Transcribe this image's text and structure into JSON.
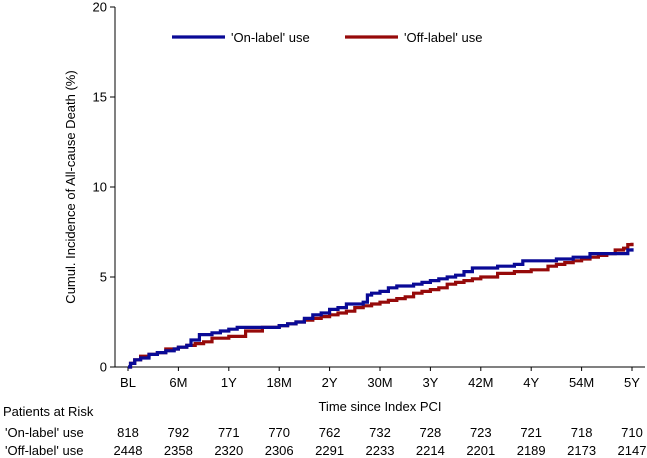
{
  "chart_data": {
    "type": "line",
    "title": "",
    "xlabel": "Time since Index PCI",
    "ylabel": "Cumul. Incidence of All-cause Death (%)",
    "ylim": [
      0,
      20
    ],
    "yticks": [
      "0",
      "5",
      "10",
      "15",
      "20"
    ],
    "xlim": [
      0,
      60
    ],
    "xticks": [
      {
        "label": "BL",
        "month": 0
      },
      {
        "label": "6M",
        "month": 6
      },
      {
        "label": "1Y",
        "month": 12
      },
      {
        "label": "18M",
        "month": 18
      },
      {
        "label": "2Y",
        "month": 24
      },
      {
        "label": "30M",
        "month": 30
      },
      {
        "label": "3Y",
        "month": 36
      },
      {
        "label": "42M",
        "month": 42
      },
      {
        "label": "4Y",
        "month": 48
      },
      {
        "label": "54M",
        "month": 54
      },
      {
        "label": "5Y",
        "month": 60
      }
    ],
    "legend_position": "top",
    "series": [
      {
        "name": "'On-label' use",
        "color": "#0a0a96",
        "points": [
          [
            0,
            0
          ],
          [
            0.3,
            0.2
          ],
          [
            0.8,
            0.4
          ],
          [
            1.5,
            0.5
          ],
          [
            2.5,
            0.7
          ],
          [
            3.5,
            0.8
          ],
          [
            4.5,
            0.9
          ],
          [
            5.5,
            1.0
          ],
          [
            6,
            1.1
          ],
          [
            7,
            1.2
          ],
          [
            7.5,
            1.5
          ],
          [
            8.5,
            1.8
          ],
          [
            10,
            1.9
          ],
          [
            11,
            2.0
          ],
          [
            12,
            2.1
          ],
          [
            13,
            2.2
          ],
          [
            16,
            2.2
          ],
          [
            18,
            2.3
          ],
          [
            19,
            2.4
          ],
          [
            20,
            2.5
          ],
          [
            21,
            2.7
          ],
          [
            22,
            2.9
          ],
          [
            23,
            3.0
          ],
          [
            24,
            3.2
          ],
          [
            25,
            3.3
          ],
          [
            26,
            3.5
          ],
          [
            28,
            3.6
          ],
          [
            28.5,
            4.0
          ],
          [
            29,
            4.1
          ],
          [
            30,
            4.2
          ],
          [
            31,
            4.4
          ],
          [
            32,
            4.5
          ],
          [
            34,
            4.6
          ],
          [
            35,
            4.7
          ],
          [
            36,
            4.8
          ],
          [
            37,
            4.9
          ],
          [
            38,
            5.0
          ],
          [
            39,
            5.1
          ],
          [
            40,
            5.3
          ],
          [
            41,
            5.5
          ],
          [
            43,
            5.5
          ],
          [
            44,
            5.6
          ],
          [
            46,
            5.7
          ],
          [
            47,
            5.9
          ],
          [
            50,
            5.9
          ],
          [
            51,
            6.0
          ],
          [
            53,
            6.1
          ],
          [
            55,
            6.3
          ],
          [
            59,
            6.3
          ],
          [
            59.5,
            6.5
          ],
          [
            60,
            6.6
          ]
        ]
      },
      {
        "name": "'Off-label' use",
        "color": "#960a0a",
        "points": [
          [
            0,
            0
          ],
          [
            0.3,
            0.2
          ],
          [
            0.8,
            0.4
          ],
          [
            1.5,
            0.6
          ],
          [
            2.5,
            0.7
          ],
          [
            3.5,
            0.8
          ],
          [
            4.5,
            1.0
          ],
          [
            6,
            1.1
          ],
          [
            7,
            1.2
          ],
          [
            8,
            1.3
          ],
          [
            9,
            1.4
          ],
          [
            10,
            1.6
          ],
          [
            12,
            1.7
          ],
          [
            14,
            2.0
          ],
          [
            16,
            2.2
          ],
          [
            18,
            2.3
          ],
          [
            19,
            2.4
          ],
          [
            20,
            2.5
          ],
          [
            21,
            2.6
          ],
          [
            22,
            2.7
          ],
          [
            23,
            2.8
          ],
          [
            24,
            2.9
          ],
          [
            25,
            3.0
          ],
          [
            26,
            3.1
          ],
          [
            27,
            3.3
          ],
          [
            28,
            3.4
          ],
          [
            29,
            3.5
          ],
          [
            30,
            3.6
          ],
          [
            31,
            3.7
          ],
          [
            32,
            3.8
          ],
          [
            33,
            3.9
          ],
          [
            34,
            4.1
          ],
          [
            35,
            4.2
          ],
          [
            36,
            4.3
          ],
          [
            37,
            4.4
          ],
          [
            38,
            4.6
          ],
          [
            39,
            4.7
          ],
          [
            40,
            4.8
          ],
          [
            41,
            4.9
          ],
          [
            42,
            5.0
          ],
          [
            44,
            5.2
          ],
          [
            46,
            5.3
          ],
          [
            48,
            5.4
          ],
          [
            50,
            5.6
          ],
          [
            51,
            5.7
          ],
          [
            52,
            5.8
          ],
          [
            53,
            5.9
          ],
          [
            54,
            6.0
          ],
          [
            55,
            6.1
          ],
          [
            56,
            6.2
          ],
          [
            57,
            6.3
          ],
          [
            58,
            6.5
          ],
          [
            59,
            6.6
          ],
          [
            59.5,
            6.8
          ],
          [
            60,
            6.9
          ]
        ]
      }
    ]
  },
  "risk_table": {
    "title": "Patients at Risk",
    "rows": [
      {
        "label": "'On-label' use",
        "values": [
          "818",
          "792",
          "771",
          "770",
          "762",
          "732",
          "728",
          "723",
          "721",
          "718",
          "710"
        ]
      },
      {
        "label": "'Off-label' use",
        "values": [
          "2448",
          "2358",
          "2320",
          "2306",
          "2291",
          "2233",
          "2214",
          "2201",
          "2189",
          "2173",
          "2147"
        ]
      }
    ]
  }
}
